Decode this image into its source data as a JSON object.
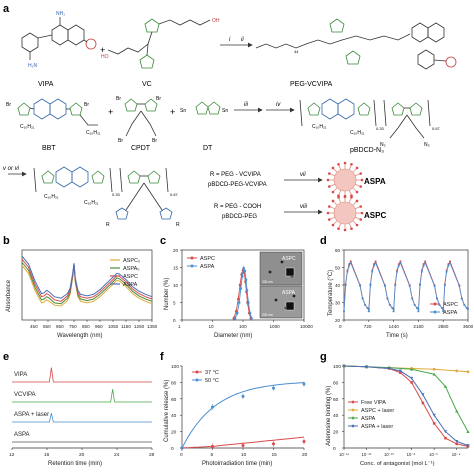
{
  "panel_labels": {
    "a": "a",
    "b": "b",
    "c": "c",
    "d": "d",
    "e": "e",
    "f": "f",
    "g": "g"
  },
  "scheme": {
    "compounds": {
      "vipa": "VIPA",
      "vc": "VC",
      "peg_vcvipa": "PEG-VCVIPA",
      "bbt": "BBT",
      "cpdt": "CPDT",
      "dt": "DT",
      "pbdcd_n3": "pBDCD-N₃",
      "aspa": "ASPA",
      "aspc": "ASPC"
    },
    "arrows": {
      "i": "i",
      "ii": "ii",
      "iii": "iii",
      "iv": "iv",
      "v_or_vi": "v or vi",
      "vii": "vii",
      "viii": "viii"
    },
    "r_vcvipa": "R = PEG - VCVIPA",
    "pbdcd_peg_vcvipa": "pBDCD-PEG-VCVIPA",
    "r_cooh": "R = PEG - COOH",
    "pbdcd_peg": "pBDCD-PEG",
    "subscripts": {
      "peg": "44",
      "n33": "0.33",
      "n067": "0.67"
    }
  },
  "chart_data": [
    {
      "panel": "b",
      "type": "line",
      "xlabel": "Wavelength (nm)",
      "ylabel": "Absorbance",
      "xlim": [
        350,
        1350
      ],
      "xticks": [
        450,
        550,
        650,
        750,
        850,
        950,
        1050,
        1150,
        1250,
        1350
      ],
      "series": [
        {
          "name": "ASPC₀",
          "color": "#e0a93a",
          "x": [
            350,
            400,
            450,
            500,
            520,
            540,
            560,
            600,
            650,
            700,
            720,
            740,
            750,
            760,
            780,
            800,
            850,
            900,
            950,
            1000,
            1050,
            1080,
            1100,
            1150,
            1200,
            1250,
            1300,
            1350
          ],
          "y": [
            0.7,
            0.6,
            0.38,
            0.22,
            0.23,
            0.26,
            0.24,
            0.19,
            0.18,
            0.25,
            0.33,
            0.55,
            0.7,
            0.48,
            0.3,
            0.24,
            0.22,
            0.24,
            0.3,
            0.38,
            0.46,
            0.51,
            0.5,
            0.43,
            0.34,
            0.28,
            0.24,
            0.21
          ]
        },
        {
          "name": "ASPA₀",
          "color": "#4a8a3a",
          "x": [
            350,
            400,
            450,
            500,
            520,
            540,
            560,
            600,
            650,
            700,
            720,
            740,
            750,
            760,
            780,
            800,
            850,
            900,
            950,
            1000,
            1050,
            1080,
            1100,
            1150,
            1200,
            1250,
            1300,
            1350
          ],
          "y": [
            0.74,
            0.64,
            0.42,
            0.26,
            0.27,
            0.3,
            0.28,
            0.22,
            0.21,
            0.28,
            0.35,
            0.56,
            0.71,
            0.5,
            0.32,
            0.27,
            0.25,
            0.27,
            0.33,
            0.41,
            0.49,
            0.54,
            0.53,
            0.46,
            0.37,
            0.31,
            0.27,
            0.24
          ]
        },
        {
          "name": "ASPC",
          "color": "#d94a4a",
          "x": [
            350,
            400,
            450,
            500,
            520,
            540,
            560,
            600,
            650,
            700,
            720,
            740,
            750,
            760,
            780,
            800,
            850,
            900,
            950,
            1000,
            1050,
            1080,
            1100,
            1150,
            1200,
            1250,
            1300,
            1350
          ],
          "y": [
            0.78,
            0.68,
            0.46,
            0.3,
            0.31,
            0.34,
            0.32,
            0.26,
            0.24,
            0.31,
            0.38,
            0.58,
            0.72,
            0.52,
            0.35,
            0.3,
            0.28,
            0.3,
            0.36,
            0.44,
            0.52,
            0.57,
            0.56,
            0.49,
            0.4,
            0.34,
            0.3,
            0.27
          ]
        },
        {
          "name": "ASPA",
          "color": "#4a6fb5",
          "x": [
            350,
            400,
            450,
            500,
            520,
            540,
            560,
            600,
            650,
            700,
            720,
            740,
            750,
            760,
            780,
            800,
            850,
            900,
            950,
            1000,
            1050,
            1080,
            1100,
            1150,
            1200,
            1250,
            1300,
            1350
          ],
          "y": [
            0.82,
            0.72,
            0.5,
            0.34,
            0.35,
            0.38,
            0.36,
            0.3,
            0.28,
            0.34,
            0.41,
            0.6,
            0.73,
            0.54,
            0.38,
            0.33,
            0.31,
            0.33,
            0.39,
            0.47,
            0.55,
            0.6,
            0.59,
            0.52,
            0.43,
            0.37,
            0.33,
            0.3
          ]
        }
      ]
    },
    {
      "panel": "c",
      "type": "line",
      "xlabel": "Diameter (nm)",
      "ylabel": "Number (%)",
      "xscale": "log",
      "xlim": [
        1,
        10000
      ],
      "ylim": [
        0,
        20
      ],
      "xticks": [
        1,
        10,
        100,
        1000,
        10000
      ],
      "yticks": [
        0,
        5,
        10,
        15,
        20
      ],
      "series": [
        {
          "name": "ASPC",
          "color": "#d94a4a",
          "x": [
            50,
            60,
            70,
            80,
            90,
            100,
            110,
            120,
            130,
            140,
            160,
            180
          ],
          "y": [
            0.5,
            2.5,
            6,
            10,
            13,
            14.2,
            13.5,
            11,
            8,
            5,
            2,
            0.5
          ]
        },
        {
          "name": "ASPA",
          "color": "#4a8fd0",
          "x": [
            55,
            65,
            75,
            85,
            95,
            105,
            115,
            125,
            135,
            150,
            170,
            190
          ],
          "y": [
            0.5,
            2,
            5,
            9,
            12.5,
            14.8,
            14,
            11.5,
            8.5,
            5,
            2,
            0.5
          ]
        }
      ],
      "insets": {
        "top": "ASPC",
        "bottom": "ASPA",
        "scale_top": "200 nm",
        "scale_bottom": "200 nm"
      }
    },
    {
      "panel": "d",
      "type": "line",
      "xlabel": "Time (s)",
      "ylabel": "Temperature (°C)",
      "xlim": [
        0,
        3600
      ],
      "ylim": [
        20,
        60
      ],
      "xticks": [
        0,
        720,
        1440,
        2160,
        2880,
        3600
      ],
      "yticks": [
        20,
        30,
        40,
        50,
        60
      ],
      "series": [
        {
          "name": "ASPC",
          "color": "#d94a4a"
        },
        {
          "name": "ASPA",
          "color": "#4a8fd0"
        }
      ],
      "cycles": 5,
      "period_s": 720,
      "peak_c": 55,
      "base_c": 25
    },
    {
      "panel": "e",
      "type": "line",
      "xlabel": "Retention time (min)",
      "xlim": [
        12,
        28
      ],
      "xticks": [
        12,
        16,
        20,
        24,
        28
      ],
      "series": [
        {
          "name": "VIPA",
          "color": "#d94a4a",
          "peak_min": 16.5,
          "peak_h": 0.9
        },
        {
          "name": "VCVIPA",
          "color": "#4aa84a",
          "peak_min": 23.5,
          "peak_h": 0.8
        },
        {
          "name": "ASPA + laser",
          "color": "#4a8fd0",
          "peak_min": 16.5,
          "peak_h": 0.55
        },
        {
          "name": "ASPA",
          "color": "#555555",
          "peak_min": null,
          "peak_h": 0
        }
      ]
    },
    {
      "panel": "f",
      "type": "line",
      "xlabel": "Photoirradiation time (min)",
      "ylabel": "Cumulative release (%)",
      "xlim": [
        0,
        20
      ],
      "ylim": [
        0,
        100
      ],
      "xticks": [
        0,
        5,
        10,
        15,
        20
      ],
      "yticks": [
        0,
        20,
        40,
        60,
        80,
        100
      ],
      "series": [
        {
          "name": "37 °C",
          "color": "#d94a4a",
          "x": [
            0,
            5,
            10,
            15,
            20
          ],
          "y": [
            0,
            2,
            3,
            5,
            8
          ]
        },
        {
          "name": "50 °C",
          "color": "#4a8fd0",
          "x": [
            0,
            5,
            10,
            15,
            20
          ],
          "y": [
            0,
            50,
            63,
            73,
            78
          ]
        }
      ]
    },
    {
      "panel": "g",
      "type": "line",
      "xlabel": "Conc. of antagonist (mol L⁻¹)",
      "ylabel": "Adenosine binding (%)",
      "xscale": "log",
      "xlim": [
        -14,
        -3
      ],
      "ylim": [
        0,
        100
      ],
      "xticks_labels": [
        "10⁻¹⁴",
        "10⁻¹²",
        "10⁻¹⁰",
        "10⁻⁸",
        "10⁻⁶",
        "10⁻⁴"
      ],
      "yticks": [
        0,
        20,
        40,
        60,
        80,
        100
      ],
      "series": [
        {
          "name": "Free VIPA",
          "color": "#d94a4a",
          "x": [
            -14,
            -12,
            -10,
            -9,
            -8,
            -7,
            -6,
            -5,
            -4,
            -3
          ],
          "y": [
            100,
            99,
            97,
            92,
            80,
            55,
            30,
            12,
            5,
            2
          ]
        },
        {
          "name": "ASPC + laser",
          "color": "#e0a93a",
          "x": [
            -14,
            -12,
            -10,
            -8,
            -6,
            -4,
            -3
          ],
          "y": [
            100,
            99,
            98,
            97,
            96,
            94,
            93
          ]
        },
        {
          "name": "ASPA",
          "color": "#4aa84a",
          "x": [
            -14,
            -12,
            -10,
            -8,
            -6,
            -5,
            -4,
            -3
          ],
          "y": [
            100,
            99,
            98,
            96,
            90,
            75,
            45,
            20
          ]
        },
        {
          "name": "ASPA + laser",
          "color": "#4a6fb5",
          "x": [
            -14,
            -12,
            -10,
            -9,
            -8,
            -7,
            -6,
            -5,
            -4,
            -3
          ],
          "y": [
            100,
            99,
            97,
            94,
            85,
            65,
            40,
            20,
            8,
            3
          ]
        }
      ]
    }
  ]
}
